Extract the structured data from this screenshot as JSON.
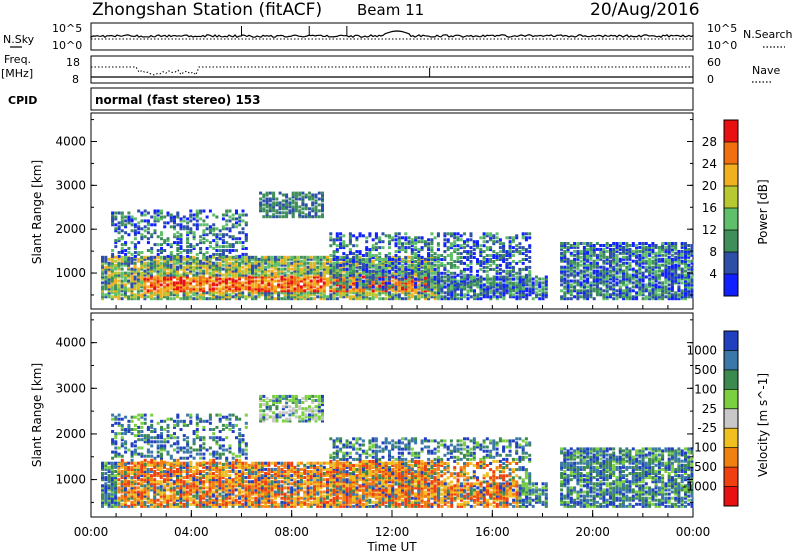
{
  "header": {
    "station": "Zhongshan Station (fitACF)",
    "beam": "Beam 11",
    "date": "20/Aug/2016"
  },
  "status_panels": {
    "nsky_label": "N.Sky",
    "nsky_ticks": [
      "10^5",
      "10^0"
    ],
    "nsearch_label": "N.Search",
    "nsearch_ticks": [
      "10^5",
      "10^0"
    ],
    "freq_label": "Freq.",
    "freq_unit": "[MHz]",
    "freq_ticks": [
      "18",
      "8"
    ],
    "nave_label": "Nave",
    "nave_ticks": [
      "60",
      "0"
    ],
    "cpid_label": "CPID",
    "cpid_text": "normal (fast stereo) 153"
  },
  "chart_data": [
    {
      "type": "heatmap",
      "title": "",
      "xlabel": "",
      "ylabel": "Slant Range [km]",
      "ylim": [
        180,
        4650
      ],
      "y_ticks": [
        "1000",
        "2000",
        "3000",
        "4000"
      ],
      "colorbar_label": "Power [dB]",
      "colorbar_ticks": [
        "4",
        "8",
        "12",
        "16",
        "20",
        "24",
        "28"
      ],
      "colorbar_colors": [
        "#1020ff",
        "#2e4fa8",
        "#3f8f5a",
        "#5fbf6a",
        "#b8c830",
        "#f0b020",
        "#f07010",
        "#e81010"
      ],
      "features": [
        {
          "t_start": "00:30",
          "t_end": "13:45",
          "range_km": [
            400,
            1400
          ],
          "level": "strong"
        },
        {
          "t_start": "06:45",
          "t_end": "09:15",
          "range_km": [
            2300,
            2800
          ],
          "level": "weak"
        },
        {
          "t_start": "18:50",
          "t_end": "23:59",
          "range_km": [
            400,
            1600
          ],
          "level": "medium"
        }
      ]
    },
    {
      "type": "heatmap",
      "title": "",
      "xlabel": "Time UT",
      "ylabel": "Slant Range [km]",
      "ylim": [
        180,
        4650
      ],
      "y_ticks": [
        "1000",
        "2000",
        "3000",
        "4000"
      ],
      "x_ticks": [
        "00:00",
        "04:00",
        "08:00",
        "12:00",
        "16:00",
        "20:00",
        "00:00"
      ],
      "colorbar_label": "Velocity [m s^-1]",
      "colorbar_ticks": [
        "1000",
        "500",
        "100",
        "25",
        "-25",
        "-100",
        "-500",
        "-1000"
      ],
      "colorbar_colors": [
        "#2040c0",
        "#3a78a8",
        "#3c8a50",
        "#7bd040",
        "#c8c8c8",
        "#f0c020",
        "#f08010",
        "#f04010",
        "#e81010"
      ]
    }
  ]
}
